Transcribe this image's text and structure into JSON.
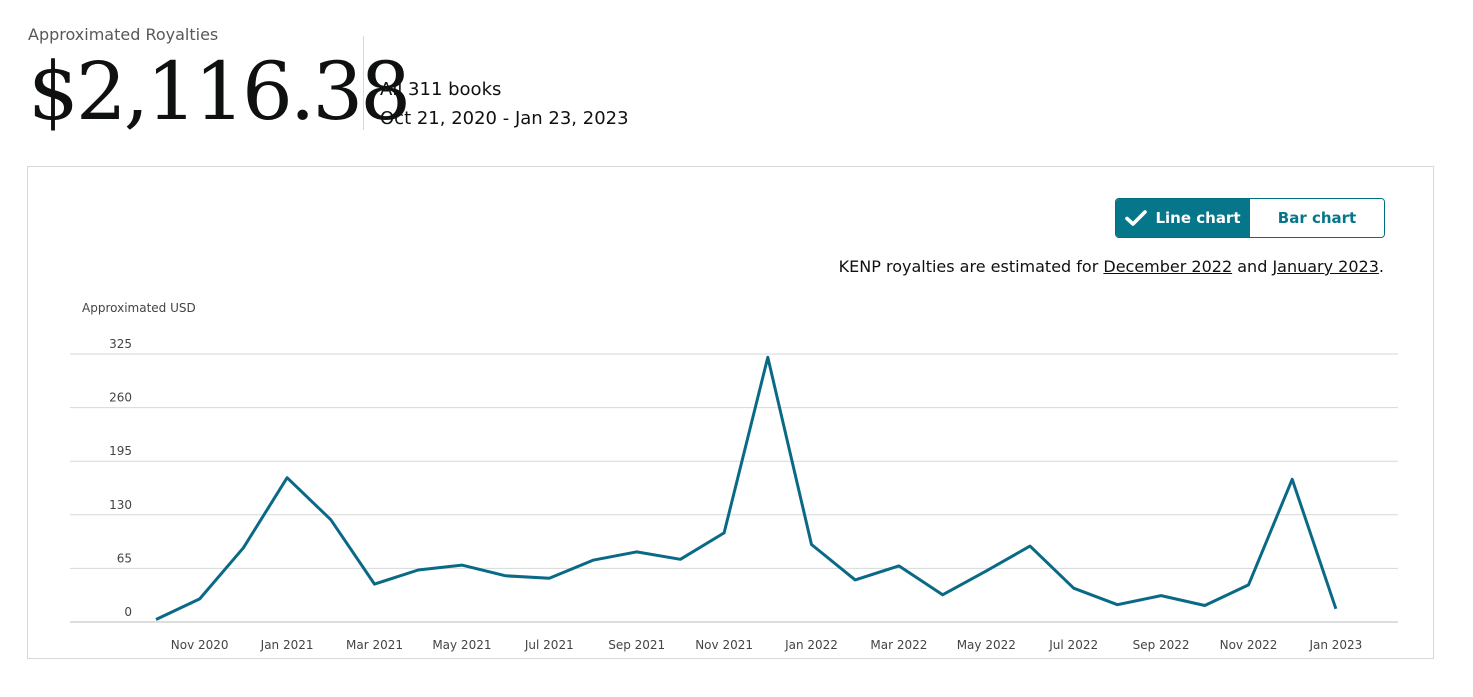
{
  "summary": {
    "label": "Approximated Royalties",
    "amount": "$2,116.38",
    "books": "All 311 books",
    "date_range": "Oct 21, 2020 - Jan 23, 2023"
  },
  "toggle": {
    "line_label": "Line chart",
    "bar_label": "Bar chart",
    "active": "line"
  },
  "note": {
    "prefix": "KENP royalties are estimated for ",
    "link1": "December 2022",
    "middle": " and ",
    "link2": "January 2023",
    "suffix": "."
  },
  "colors": {
    "accent": "#06768a",
    "line": "#0a6a86",
    "grid": "#d5d9d9"
  },
  "icons": {
    "check": "check-icon"
  },
  "chart_data": {
    "type": "line",
    "ylabel": "Approximated USD",
    "ylim": [
      0,
      325
    ],
    "yticks": [
      0,
      65,
      130,
      195,
      260,
      325
    ],
    "xtick_labels": [
      "Nov 2020",
      "Jan 2021",
      "Mar 2021",
      "May 2021",
      "Jul 2021",
      "Sep 2021",
      "Nov 2021",
      "Jan 2022",
      "Mar 2022",
      "May 2022",
      "Jul 2022",
      "Sep 2022",
      "Nov 2022",
      "Jan 2023"
    ],
    "x": [
      "Oct 2020",
      "Nov 2020",
      "Dec 2020",
      "Jan 2021",
      "Feb 2021",
      "Mar 2021",
      "Apr 2021",
      "May 2021",
      "Jun 2021",
      "Jul 2021",
      "Aug 2021",
      "Sep 2021",
      "Oct 2021",
      "Nov 2021",
      "Dec 2021",
      "Jan 2022",
      "Feb 2022",
      "Mar 2022",
      "Apr 2022",
      "May 2022",
      "Jun 2022",
      "Jul 2022",
      "Aug 2022",
      "Sep 2022",
      "Oct 2022",
      "Nov 2022",
      "Dec 2022",
      "Jan 2023"
    ],
    "series": [
      {
        "values": [
          3,
          28,
          90,
          175,
          124,
          46,
          63,
          69,
          56,
          53,
          75,
          85,
          76,
          108,
          321,
          94,
          51,
          68,
          33,
          62,
          92,
          41,
          21,
          32,
          20,
          45,
          173,
          16
        ]
      }
    ],
    "grid": true
  }
}
